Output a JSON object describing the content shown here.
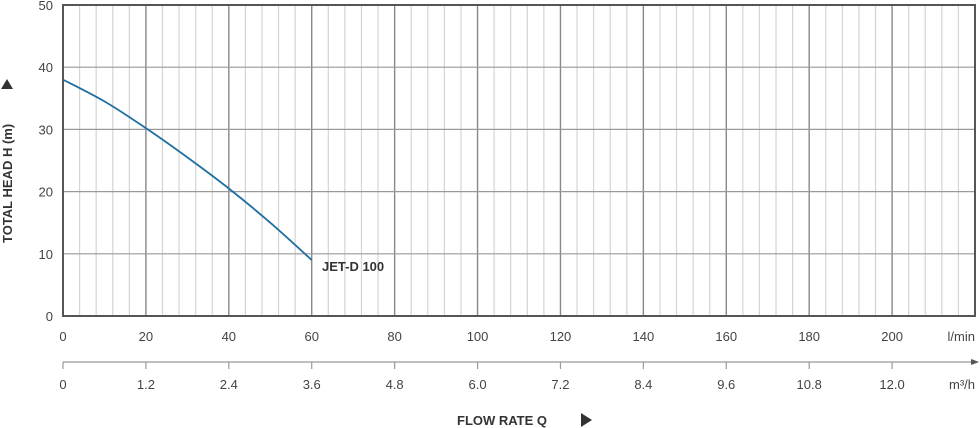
{
  "chart_data": {
    "type": "line",
    "title": "",
    "xlabel": "FLOW RATE Q",
    "ylabel": "TOTAL HEAD H (m)",
    "x_unit": "l/min",
    "x2_unit": "m³/h",
    "xlim": [
      0,
      220
    ],
    "ylim": [
      0,
      50
    ],
    "grid": true,
    "x_ticks": [
      0,
      20,
      40,
      60,
      80,
      100,
      120,
      140,
      160,
      180,
      200
    ],
    "x2_ticks": [
      "0",
      "1.2",
      "2.4",
      "3.6",
      "4.8",
      "6.0",
      "7.2",
      "8.4",
      "9.6",
      "10.8",
      "12.0"
    ],
    "y_ticks": [
      0,
      10,
      20,
      30,
      40,
      50
    ],
    "series": [
      {
        "name": "JET-D 100",
        "color": "#1f6fa0",
        "x": [
          0,
          10,
          20,
          30,
          40,
          50,
          60
        ],
        "y": [
          38,
          34.5,
          30.2,
          25.5,
          20.5,
          15,
          9
        ]
      }
    ]
  }
}
